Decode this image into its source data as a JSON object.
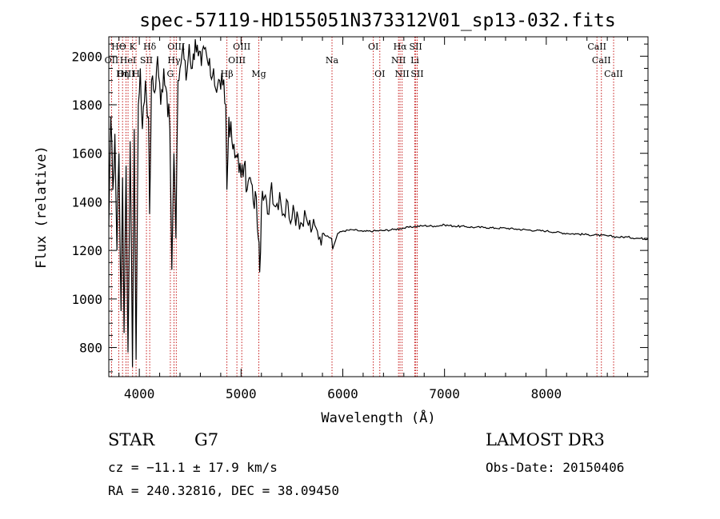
{
  "chart_data": {
    "type": "line",
    "title": "spec-57119-HD155051N373312V01_sp13-032.fits",
    "xlabel": "Wavelength (Å)",
    "ylabel": "Flux (relative)",
    "xlim": [
      3700,
      9000
    ],
    "ylim": [
      680,
      2080
    ],
    "xticks": [
      4000,
      5000,
      6000,
      7000,
      8000
    ],
    "xtick_labels": [
      "4000",
      "5000",
      "6000",
      "7000",
      "8000"
    ],
    "yticks": [
      800,
      1000,
      1200,
      1400,
      1600,
      1800,
      2000
    ],
    "ytick_labels": [
      "800",
      "1000",
      "1200",
      "1400",
      "1600",
      "1800",
      "2000"
    ],
    "grid": false,
    "series": [
      {
        "name": "flux",
        "color": "#000000",
        "x": [
          3700,
          3720,
          3740,
          3760,
          3780,
          3800,
          3820,
          3835,
          3850,
          3870,
          3889,
          3910,
          3933,
          3950,
          3968,
          3990,
          4010,
          4030,
          4060,
          4090,
          4101,
          4120,
          4150,
          4180,
          4210,
          4240,
          4270,
          4300,
          4320,
          4340,
          4360,
          4380,
          4400,
          4430,
          4460,
          4490,
          4520,
          4550,
          4580,
          4610,
          4640,
          4670,
          4700,
          4730,
          4760,
          4790,
          4820,
          4850,
          4861,
          4880,
          4910,
          4940,
          4970,
          5000,
          5030,
          5060,
          5090,
          5120,
          5150,
          5170,
          5183,
          5200,
          5230,
          5260,
          5300,
          5340,
          5380,
          5420,
          5460,
          5500,
          5550,
          5600,
          5650,
          5700,
          5750,
          5800,
          5850,
          5890,
          5900,
          5950,
          6000,
          6100,
          6200,
          6300,
          6400,
          6500,
          6563,
          6600,
          6700,
          6800,
          6900,
          7000,
          7100,
          7200,
          7300,
          7400,
          7500,
          7600,
          7700,
          7800,
          7900,
          8000,
          8100,
          8200,
          8300,
          8400,
          8500,
          8600,
          8700,
          8800,
          8900,
          9000
        ],
        "y": [
          1300,
          1750,
          1450,
          1680,
          1200,
          1600,
          950,
          1500,
          860,
          1550,
          780,
          1650,
          720,
          1700,
          750,
          1800,
          1950,
          1700,
          1900,
          1750,
          1350,
          1900,
          1850,
          2000,
          1800,
          1950,
          1850,
          1700,
          1120,
          1600,
          1250,
          1900,
          1950,
          2050,
          1900,
          2050,
          1950,
          2070,
          2000,
          1960,
          2030,
          1980,
          1920,
          1950,
          1850,
          1900,
          1880,
          1800,
          1450,
          1750,
          1650,
          1580,
          1600,
          1500,
          1550,
          1450,
          1500,
          1400,
          1420,
          1250,
          1110,
          1380,
          1420,
          1350,
          1480,
          1380,
          1440,
          1350,
          1400,
          1330,
          1360,
          1310,
          1320,
          1290,
          1280,
          1270,
          1260,
          1250,
          1205,
          1270,
          1280,
          1285,
          1278,
          1280,
          1282,
          1286,
          1290,
          1292,
          1298,
          1302,
          1300,
          1305,
          1300,
          1298,
          1295,
          1295,
          1292,
          1292,
          1288,
          1285,
          1282,
          1280,
          1275,
          1270,
          1268,
          1265,
          1263,
          1260,
          1255,
          1255,
          1250,
          1248
        ]
      }
    ],
    "line_markers": [
      {
        "label": "HΘ",
        "wavelength": 3798,
        "row": 1
      },
      {
        "label": "K",
        "wavelength": 3934,
        "row": 1
      },
      {
        "label": "Hδ",
        "wavelength": 4102,
        "row": 1
      },
      {
        "label": "OII",
        "wavelength": 3727,
        "row": 2
      },
      {
        "label": "HeI",
        "wavelength": 3889,
        "row": 2
      },
      {
        "label": "SII",
        "wavelength": 4070,
        "row": 2
      },
      {
        "label": "OIII",
        "wavelength": 3869,
        "row": 3
      },
      {
        "label": "Hη",
        "wavelength": 3835,
        "row": 3
      },
      {
        "label": "H",
        "wavelength": 3968,
        "row": 3
      },
      {
        "label": "OIII",
        "wavelength": 4363,
        "row": 1
      },
      {
        "label": "Hγ",
        "wavelength": 4341,
        "row": 2
      },
      {
        "label": "G",
        "wavelength": 4305,
        "row": 3
      },
      {
        "label": "OIII",
        "wavelength": 5007,
        "row": 1
      },
      {
        "label": "OIII",
        "wavelength": 4959,
        "row": 2
      },
      {
        "label": "Hβ",
        "wavelength": 4861,
        "row": 3
      },
      {
        "label": "Mg",
        "wavelength": 5175,
        "row": 3
      },
      {
        "label": "Na",
        "wavelength": 5894,
        "row": 2
      },
      {
        "label": "OI",
        "wavelength": 6300,
        "row": 1
      },
      {
        "label": "OI",
        "wavelength": 6364,
        "row": 3
      },
      {
        "label": "Hα",
        "wavelength": 6563,
        "row": 1
      },
      {
        "label": "SII",
        "wavelength": 6717,
        "row": 1
      },
      {
        "label": "NII",
        "wavelength": 6548,
        "row": 2
      },
      {
        "label": "Li",
        "wavelength": 6708,
        "row": 2
      },
      {
        "label": "NII",
        "wavelength": 6583,
        "row": 3
      },
      {
        "label": "SII",
        "wavelength": 6731,
        "row": 3
      },
      {
        "label": "CaII",
        "wavelength": 8498,
        "row": 1
      },
      {
        "label": "CaII",
        "wavelength": 8542,
        "row": 2
      },
      {
        "label": "CaII",
        "wavelength": 8662,
        "row": 3
      }
    ],
    "marker_color": "#c00000"
  },
  "info": {
    "object_class": "STAR",
    "subclass": "G7",
    "survey": "LAMOST DR3",
    "redshift_text": "cz = −11.1 ± 17.9 km/s",
    "obs_date": "Obs-Date: 20150406",
    "coords": "RA = 240.32816, DEC =  38.09450"
  }
}
